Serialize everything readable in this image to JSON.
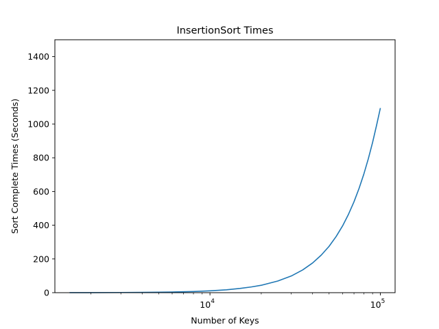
{
  "chart_data": {
    "type": "line",
    "title": "InsertionSort Times",
    "xlabel": "Number of Keys",
    "ylabel": "Sort Complete Times (Seconds)",
    "xscale": "log",
    "xlim": [
      1230,
      122000
    ],
    "ylim": [
      0,
      1500
    ],
    "grid": false,
    "legend": "none",
    "x_ticks_major": [
      10000,
      100000
    ],
    "x_tick_labels": [
      {
        "base": "10",
        "exp": "4"
      },
      {
        "base": "10",
        "exp": "5"
      }
    ],
    "x_ticks_minor": [
      2000,
      3000,
      4000,
      5000,
      6000,
      7000,
      8000,
      9000,
      20000,
      30000,
      40000,
      50000,
      60000,
      70000,
      80000,
      90000
    ],
    "y_ticks": [
      0,
      200,
      400,
      600,
      800,
      1000,
      1200,
      1400
    ],
    "y_tick_labels": [
      "0",
      "200",
      "400",
      "600",
      "800",
      "1000",
      "1200",
      "1400"
    ],
    "series": [
      {
        "color": "#1f77b4",
        "x": [
          1500,
          2000,
          3000,
          4000,
          5000,
          6000,
          8000,
          10000,
          12500,
          15000,
          17500,
          20000,
          25000,
          30000,
          35000,
          40000,
          45000,
          50000,
          55000,
          60000,
          65000,
          70000,
          75000,
          80000,
          85000,
          90000,
          95000,
          100000
        ],
        "y": [
          0.25,
          0.44,
          0.99,
          1.8,
          2.8,
          4.0,
          7.0,
          11,
          17,
          25,
          34,
          44,
          69,
          99,
          135,
          176,
          223,
          275,
          333,
          396,
          465,
          539,
          619,
          704,
          795,
          891,
          993,
          1095
        ]
      }
    ]
  }
}
